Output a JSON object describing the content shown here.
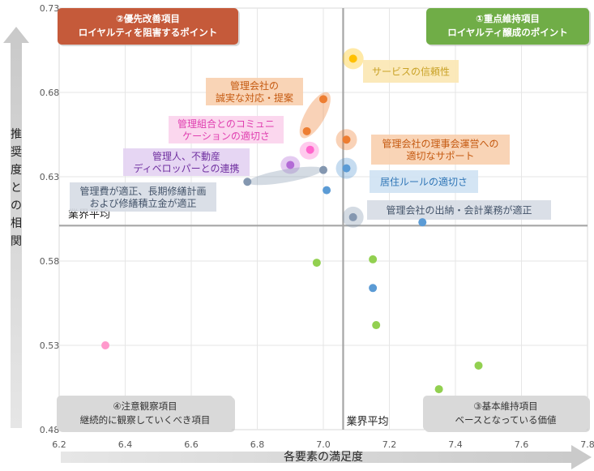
{
  "chart_data": {
    "type": "scatter",
    "title": "",
    "xlabel": "各要素の満足度",
    "ylabel": "推奨度との相関",
    "xlim": [
      6.2,
      7.8
    ],
    "ylim": [
      0.48,
      0.73
    ],
    "x_ticks": [
      "6.2",
      "6.4",
      "6.6",
      "6.8",
      "7.0",
      "7.2",
      "7.4",
      "7.6",
      "7.8"
    ],
    "y_ticks": [
      "0.48",
      "0.53",
      "0.58",
      "0.63",
      "0.68",
      "0.73"
    ],
    "grid": true,
    "industry_average": {
      "x": 7.06,
      "y": 0.601,
      "x_label": "業界平均",
      "y_label": "業界平均"
    },
    "quadrants": [
      {
        "id": "q2",
        "line1": "②優先改善項目",
        "line2": "ロイヤルティを阻害するポイント",
        "color": "#c55a3a"
      },
      {
        "id": "q1",
        "line1": "①重点維持項目",
        "line2": "ロイヤルティ醸成のポイント",
        "color": "#70ad47"
      },
      {
        "id": "q4",
        "line1": "④注意観察項目",
        "line2": "継続的に観察していくべき項目",
        "color": "#d9d9d9"
      },
      {
        "id": "q3",
        "line1": "③基本維持項目",
        "line2": "ベースとなっている価値",
        "color": "#d9d9d9"
      }
    ],
    "points": [
      {
        "x": 7.09,
        "y": 0.7,
        "color": "#ffc000",
        "label": "サービスの信頼性"
      },
      {
        "x": 7.0,
        "y": 0.676,
        "color": "#ed7d31",
        "label": ""
      },
      {
        "x": 6.95,
        "y": 0.657,
        "color": "#ed7d31",
        "label": ""
      },
      {
        "x": 7.07,
        "y": 0.652,
        "color": "#ed7d31",
        "label": "管理会社の理事会運営への適切なサポート"
      },
      {
        "x": 6.96,
        "y": 0.646,
        "color": "#ff66cc",
        "label": ""
      },
      {
        "x": 6.9,
        "y": 0.637,
        "color": "#b36bd6",
        "label": "管理人、不動産ディベロッパーとの連携"
      },
      {
        "x": 7.0,
        "y": 0.634,
        "color": "#8497b0",
        "label": ""
      },
      {
        "x": 7.07,
        "y": 0.635,
        "color": "#5b9bd5",
        "label": "居住ルールの適切さ"
      },
      {
        "x": 6.77,
        "y": 0.627,
        "color": "#8497b0",
        "label": "管理費が適正、長期修繕計画および修繕積立金が適正"
      },
      {
        "x": 7.01,
        "y": 0.622,
        "color": "#5b9bd5",
        "label": ""
      },
      {
        "x": 7.09,
        "y": 0.606,
        "color": "#8497b0",
        "label": "管理会社の出納・会計業務が適正"
      },
      {
        "x": 7.3,
        "y": 0.603,
        "color": "#5b9bd5",
        "label": ""
      },
      {
        "x": 6.98,
        "y": 0.579,
        "color": "#92d050",
        "label": ""
      },
      {
        "x": 7.15,
        "y": 0.581,
        "color": "#92d050",
        "label": ""
      },
      {
        "x": 7.15,
        "y": 0.564,
        "color": "#5b9bd5",
        "label": ""
      },
      {
        "x": 7.16,
        "y": 0.542,
        "color": "#92d050",
        "label": ""
      },
      {
        "x": 6.34,
        "y": 0.53,
        "color": "#ff99cc",
        "label": ""
      },
      {
        "x": 7.47,
        "y": 0.518,
        "color": "#92d050",
        "label": ""
      },
      {
        "x": 7.35,
        "y": 0.504,
        "color": "#92d050",
        "label": ""
      }
    ],
    "callouts": [
      {
        "id": "c-shinrai",
        "lines": [
          "サービスの信頼性"
        ],
        "bg": "#fbe7b2",
        "fg": "#c9a227"
      },
      {
        "id": "c-seijitsu",
        "lines": [
          "管理会社の",
          "誠実な対応・提案"
        ],
        "bg": "#f8cfae",
        "fg": "#c55a11"
      },
      {
        "id": "c-komyu",
        "lines": [
          "管理組合とのコミュニ",
          "ケーションの適切さ"
        ],
        "bg": "#fbd3ec",
        "fg": "#e040b0"
      },
      {
        "id": "c-renkei",
        "lines": [
          "管理人、不動産",
          "ディベロッパーとの連携"
        ],
        "bg": "#e3d2f2",
        "fg": "#7030a0"
      },
      {
        "id": "c-kanrihi",
        "lines": [
          "管理費が適正、長期修繕計画",
          "および修繕積立金が適正"
        ],
        "bg": "#d6dce4",
        "fg": "#44546a"
      },
      {
        "id": "c-rijikai",
        "lines": [
          "管理会社の理事会運営への",
          "適切なサポート"
        ],
        "bg": "#f8cfae",
        "fg": "#c55a11"
      },
      {
        "id": "c-kyoju",
        "lines": [
          "居住ルールの適切さ"
        ],
        "bg": "#cfe2f3",
        "fg": "#2e75b6"
      },
      {
        "id": "c-suitou",
        "lines": [
          "管理会社の出納・会計業務が適正"
        ],
        "bg": "#d6dce4",
        "fg": "#44546a"
      }
    ]
  }
}
